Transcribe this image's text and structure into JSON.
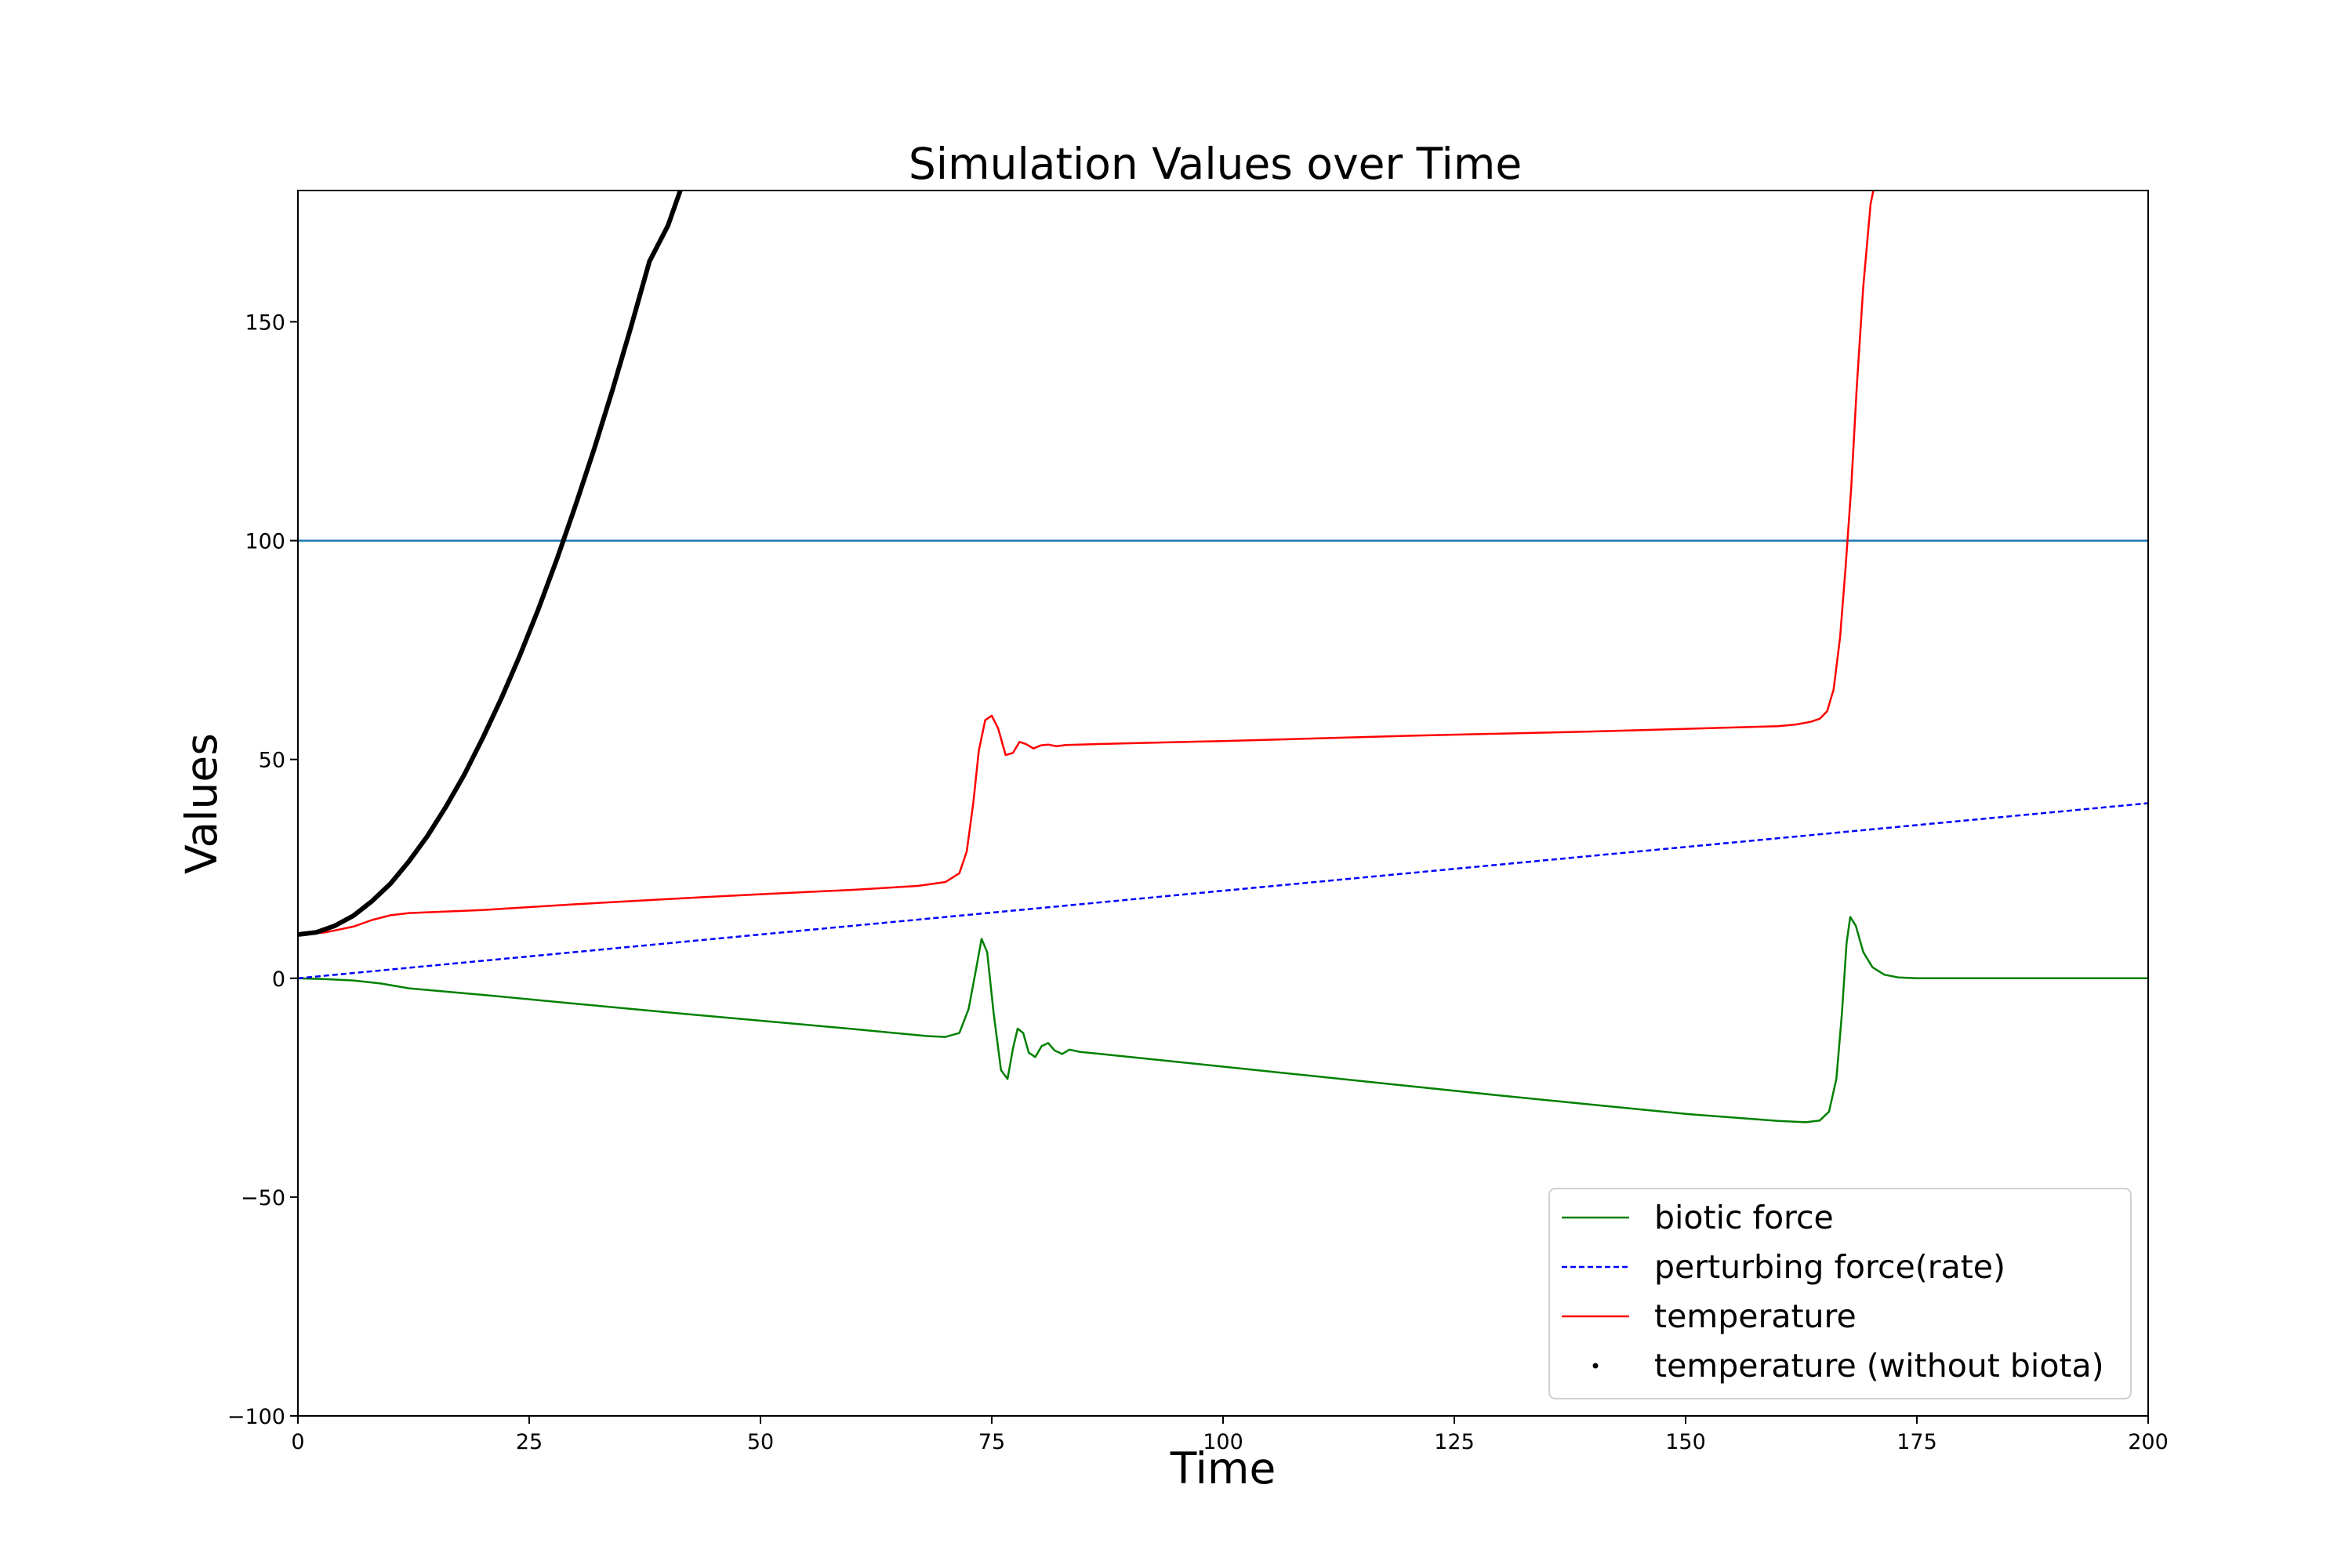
{
  "chart_data": {
    "type": "line",
    "title": "Simulation Values over Time",
    "xlabel": "Time",
    "ylabel": "Values",
    "xlim": [
      0,
      200
    ],
    "ylim": [
      -100,
      180
    ],
    "xticks": [
      0,
      25,
      50,
      75,
      100,
      125,
      150,
      175,
      200
    ],
    "yticks": [
      -100,
      -50,
      0,
      50,
      100,
      150
    ],
    "ytick_labels": [
      "−100",
      "−50",
      "0",
      "50",
      "100",
      "150"
    ],
    "grid": false,
    "legend_position": "lower-right",
    "reference_line": {
      "y": 100,
      "color": "#1f77b4"
    },
    "series": [
      {
        "name": "biotic force",
        "color": "#008000",
        "style": "solid",
        "x": [
          0,
          3,
          6,
          9,
          12,
          20,
          30,
          40,
          50,
          60,
          68,
          70,
          71.5,
          72.5,
          73.3,
          73.9,
          74.5,
          75.2,
          76,
          76.7,
          77.3,
          77.8,
          78.4,
          79,
          79.7,
          80.4,
          81.1,
          81.8,
          82.6,
          83.4,
          84.5,
          90,
          100,
          110,
          120,
          130,
          140,
          150,
          160,
          163,
          164.5,
          165.5,
          166.3,
          166.9,
          167.4,
          167.8,
          168.4,
          169.2,
          170.2,
          171.5,
          173,
          175,
          180,
          190,
          200
        ],
        "y": [
          0,
          -0.2,
          -0.5,
          -1.2,
          -2.3,
          -3.8,
          -5.8,
          -7.8,
          -9.7,
          -11.6,
          -13.2,
          -13.4,
          -12.5,
          -7,
          2,
          9,
          6,
          -8,
          -21,
          -23,
          -16,
          -11.5,
          -12.5,
          -17,
          -18,
          -15.5,
          -14.8,
          -16.5,
          -17.3,
          -16.3,
          -16.8,
          -18,
          -20.2,
          -22.4,
          -24.6,
          -26.8,
          -28.9,
          -31,
          -32.6,
          -32.9,
          -32.5,
          -30.5,
          -23,
          -8,
          8,
          14,
          12,
          6,
          2.5,
          0.8,
          0.2,
          0,
          0,
          0,
          0
        ]
      },
      {
        "name": "perturbing force(rate)",
        "color": "#0000ff",
        "style": "dashed",
        "x": [
          0,
          200
        ],
        "y": [
          0,
          40
        ]
      },
      {
        "name": "temperature",
        "color": "#ff0000",
        "style": "solid",
        "x": [
          0,
          3,
          6,
          8,
          10,
          12,
          20,
          30,
          40,
          50,
          60,
          67,
          70,
          71.5,
          72.3,
          73,
          73.6,
          74.3,
          75,
          75.7,
          76.5,
          77.3,
          78,
          78.7,
          79.5,
          80.3,
          81.1,
          82,
          83,
          84.5,
          90,
          100,
          120,
          140,
          160,
          162,
          163.5,
          164.5,
          165.3,
          166,
          166.7,
          167.3,
          167.9,
          168.5,
          169.2,
          170,
          170.5
        ],
        "y": [
          10,
          10.5,
          11.8,
          13.3,
          14.4,
          14.9,
          15.6,
          16.9,
          18.1,
          19.2,
          20.2,
          21.1,
          22,
          24,
          29,
          40,
          52,
          59,
          60,
          57,
          51,
          51.5,
          54,
          53.5,
          52.5,
          53.2,
          53.4,
          53,
          53.3,
          53.4,
          53.7,
          54.2,
          55.4,
          56.4,
          57.6,
          58,
          58.6,
          59.3,
          61,
          66,
          78,
          94,
          112,
          135,
          158,
          177,
          182
        ]
      },
      {
        "name": "temperature (without biota)",
        "color": "#000000",
        "style": "dots",
        "x": [
          0,
          2,
          4,
          6,
          8,
          10,
          12,
          14,
          16,
          18,
          20,
          22,
          24,
          26,
          28,
          30,
          32,
          34,
          36,
          38,
          40,
          41.5
        ],
        "y": [
          10,
          10.5,
          12,
          14.3,
          17.6,
          21.6,
          26.7,
          32.5,
          39.2,
          46.6,
          55,
          64,
          73.8,
          84.4,
          95.8,
          108,
          120.8,
          134.4,
          148.8,
          163.8,
          172,
          181
        ]
      }
    ]
  }
}
